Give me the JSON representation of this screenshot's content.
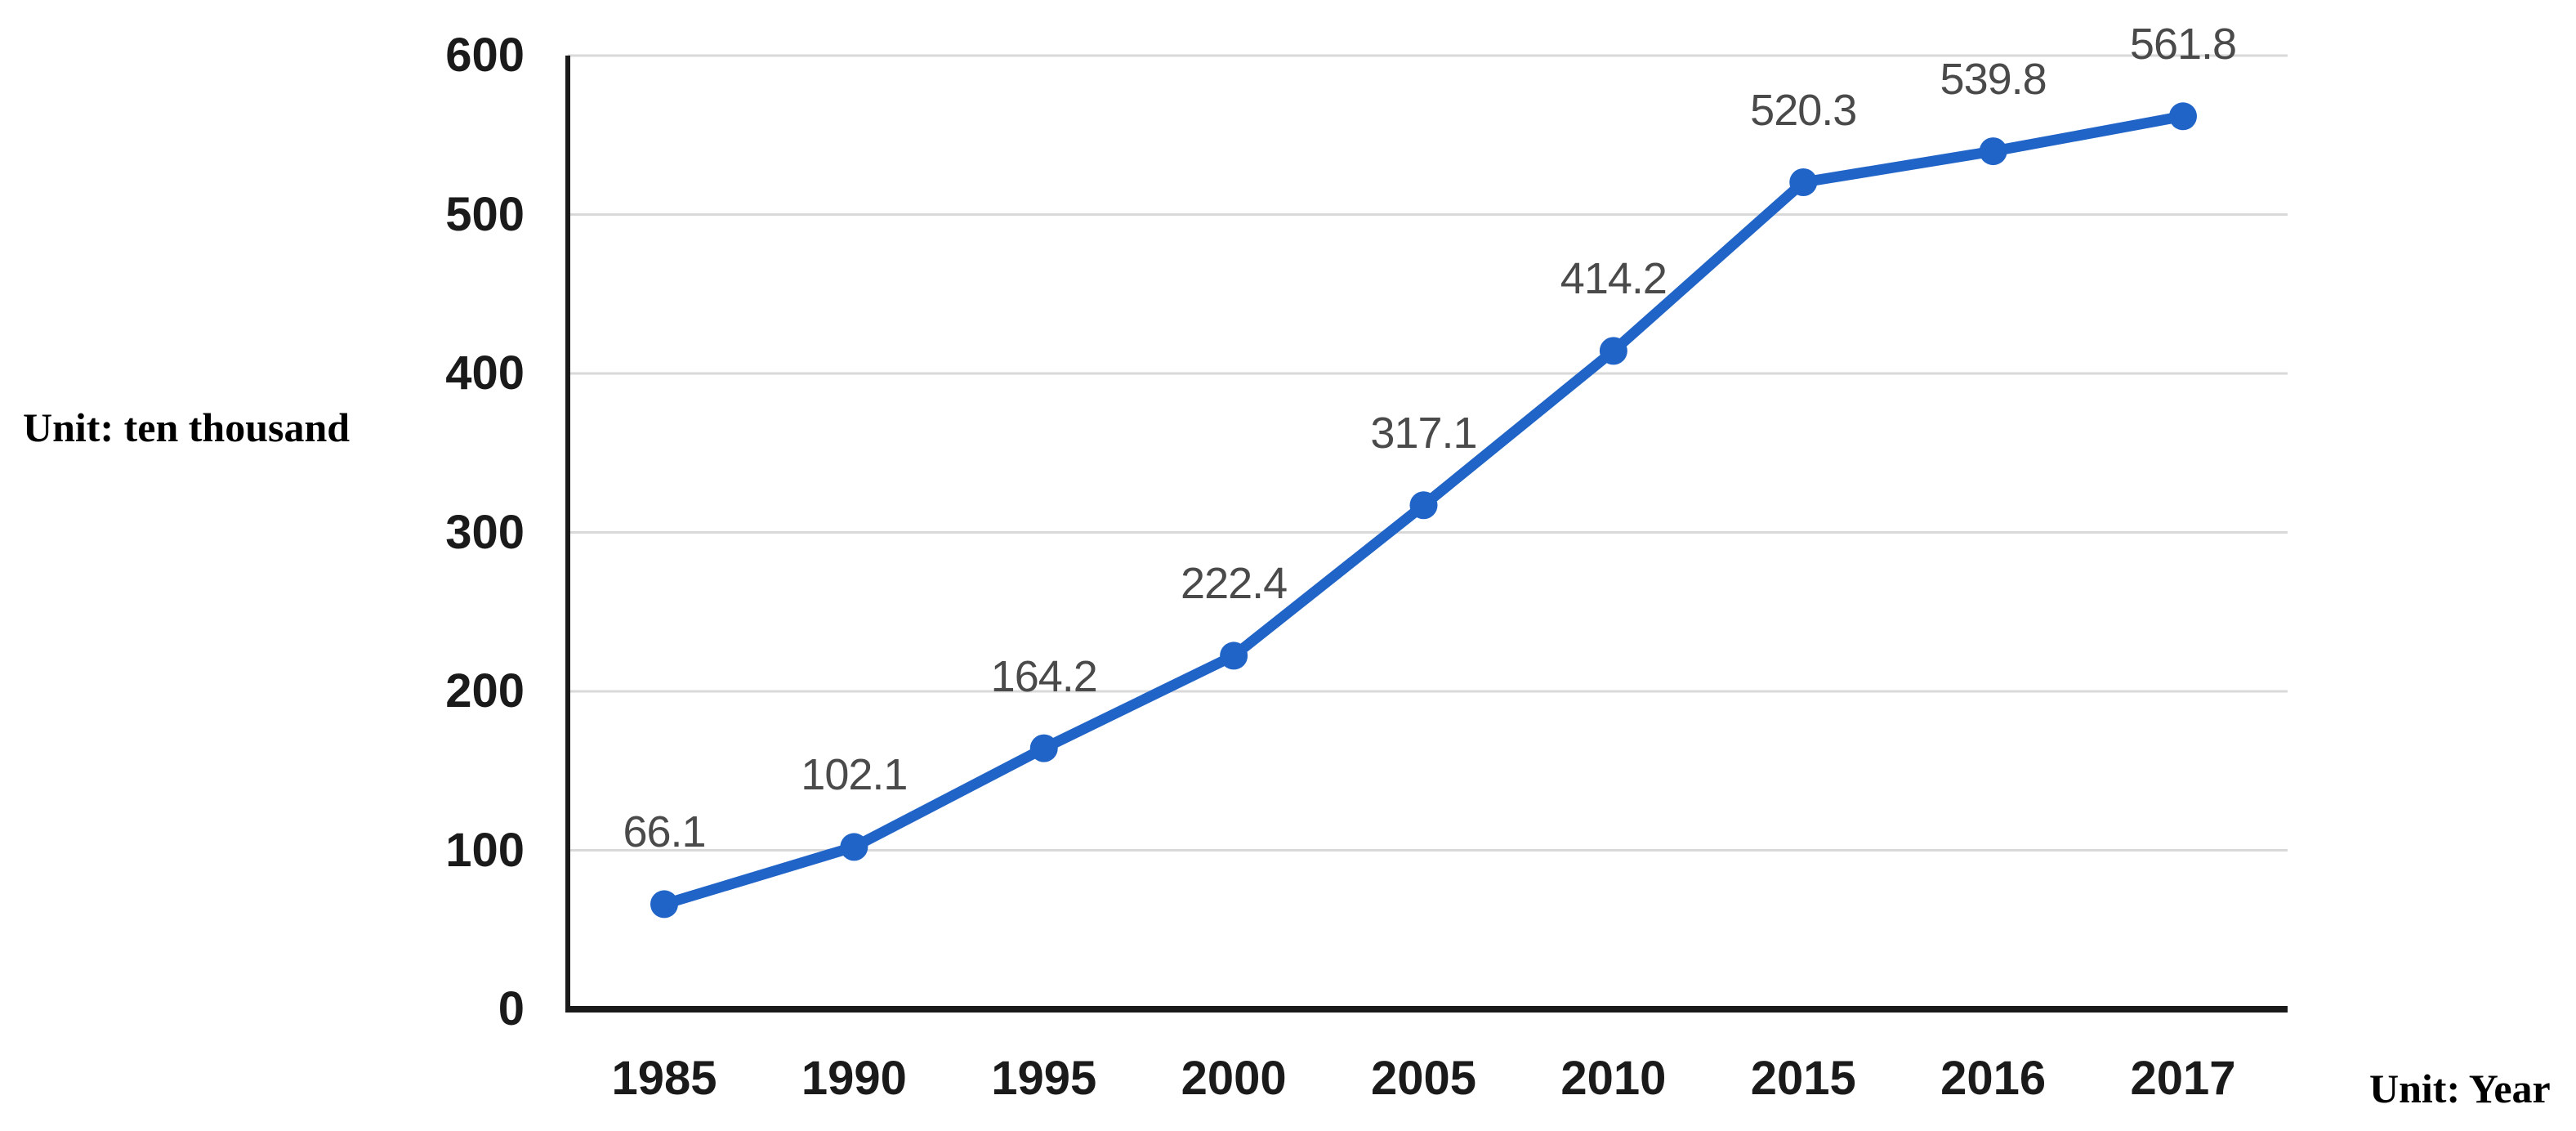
{
  "chart_data": {
    "type": "line",
    "title": "",
    "categories": [
      "1985",
      "1990",
      "1995",
      "2000",
      "2005",
      "2010",
      "2015",
      "2016",
      "2017"
    ],
    "series": [
      {
        "name": "value",
        "values": [
          66.1,
          102.1,
          164.2,
          222.4,
          317.1,
          414.2,
          520.3,
          539.8,
          561.8
        ],
        "data_labels": [
          "66.1",
          "102.1",
          "164.2",
          "222.4",
          "317.1",
          "414.2",
          "520.3",
          "539.8",
          "561.8"
        ]
      }
    ],
    "xlabel": "",
    "ylabel": "",
    "y_ticks": [
      0,
      100,
      200,
      300,
      400,
      500,
      600
    ],
    "y_tick_labels": [
      "0",
      "100",
      "200",
      "300",
      "400",
      "500",
      "600"
    ],
    "ylim": [
      0,
      600
    ],
    "grid": true,
    "legend": false,
    "left_unit_label": "Unit: ten thousand",
    "bottom_unit_label": "Unit: Year",
    "colors": {
      "line": "#2164C8",
      "marker": "#2164C8",
      "gridline": "#D9D9D9",
      "axis": "#1A1A1A",
      "data_label": "#4A4A4A",
      "tick_label": "#1A1A1A",
      "background": "#FFFFFF"
    }
  }
}
